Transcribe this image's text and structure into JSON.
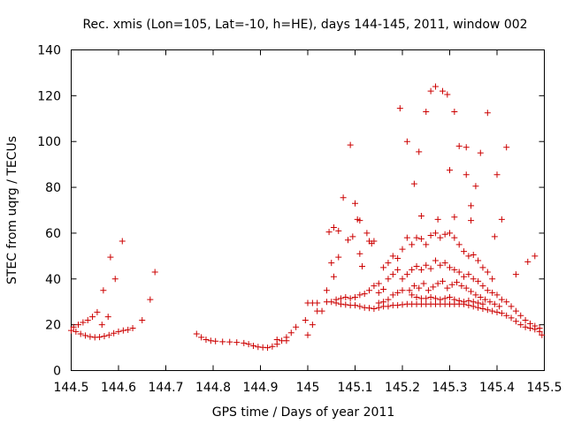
{
  "chart_data": {
    "type": "scatter",
    "title": "Rec. xmis (Lon=105, Lat=-10, h=HE), days 144-145, 2011, window 002",
    "xlabel": "GPS time / Days of year 2011",
    "ylabel": "STEC from uqrg / TECUs",
    "xlim": [
      144.5,
      145.5
    ],
    "ylim": [
      0,
      140
    ],
    "xticks": [
      144.5,
      144.6,
      144.7,
      144.8,
      144.9,
      145,
      145.1,
      145.2,
      145.3,
      145.4,
      145.5
    ],
    "xtick_labels": [
      "144.5",
      "144.6",
      "144.7",
      "144.8",
      "144.9",
      "145",
      "145.1",
      "145.2",
      "145.3",
      "145.4",
      "145.5"
    ],
    "yticks": [
      0,
      20,
      40,
      60,
      80,
      100,
      120,
      140
    ],
    "ytick_labels": [
      "0",
      "20",
      "40",
      "60",
      "80",
      "100",
      "120",
      "140"
    ],
    "grid": false,
    "legend": "none",
    "marker": "+",
    "marker_color": "#cc0000",
    "series": [
      {
        "name": "STEC",
        "points": [
          [
            144.5,
            17.5
          ],
          [
            144.51,
            17.0
          ],
          [
            144.52,
            16.0
          ],
          [
            144.53,
            15.3
          ],
          [
            144.54,
            14.8
          ],
          [
            144.55,
            14.5
          ],
          [
            144.56,
            14.6
          ],
          [
            144.57,
            15.0
          ],
          [
            144.58,
            15.5
          ],
          [
            144.59,
            16.3
          ],
          [
            144.6,
            17.0
          ],
          [
            144.61,
            17.5
          ],
          [
            144.62,
            17.8
          ],
          [
            144.63,
            18.5
          ],
          [
            144.65,
            22.0
          ],
          [
            144.505,
            19.0
          ],
          [
            144.515,
            20.0
          ],
          [
            144.525,
            21.0
          ],
          [
            144.535,
            22.0
          ],
          [
            144.545,
            23.5
          ],
          [
            144.555,
            25.5
          ],
          [
            144.565,
            20.0
          ],
          [
            144.568,
            35.0
          ],
          [
            144.578,
            23.5
          ],
          [
            144.583,
            49.5
          ],
          [
            144.593,
            40.0
          ],
          [
            144.608,
            56.5
          ],
          [
            144.667,
            31.0
          ],
          [
            144.677,
            43.0
          ],
          [
            144.765,
            16.0
          ],
          [
            144.775,
            14.5
          ],
          [
            144.785,
            13.5
          ],
          [
            144.795,
            13.0
          ],
          [
            144.805,
            12.8
          ],
          [
            144.82,
            12.6
          ],
          [
            144.835,
            12.5
          ],
          [
            144.85,
            12.3
          ],
          [
            144.865,
            12.0
          ],
          [
            144.875,
            11.5
          ],
          [
            144.885,
            10.8
          ],
          [
            144.895,
            10.3
          ],
          [
            144.905,
            10.1
          ],
          [
            144.915,
            10.0
          ],
          [
            144.925,
            10.5
          ],
          [
            144.935,
            11.5
          ],
          [
            144.945,
            13.0
          ],
          [
            144.955,
            14.5
          ],
          [
            144.965,
            16.5
          ],
          [
            144.975,
            19.0
          ],
          [
            144.935,
            13.5
          ],
          [
            144.955,
            13.0
          ],
          [
            144.995,
            22.0
          ],
          [
            145.0,
            15.5
          ],
          [
            145.01,
            20.0
          ],
          [
            145.02,
            26.0
          ],
          [
            145.03,
            26.0
          ],
          [
            145.0,
            29.5
          ],
          [
            145.01,
            29.5
          ],
          [
            145.02,
            29.5
          ],
          [
            145.04,
            30.0
          ],
          [
            145.04,
            35.0
          ],
          [
            145.045,
            60.5
          ],
          [
            145.055,
            62.5
          ],
          [
            145.05,
            47.0
          ],
          [
            145.055,
            41.0
          ],
          [
            145.065,
            49.5
          ],
          [
            145.065,
            61.0
          ],
          [
            145.075,
            75.5
          ],
          [
            145.085,
            57.0
          ],
          [
            145.09,
            98.5
          ],
          [
            145.095,
            58.5
          ],
          [
            145.1,
            73.0
          ],
          [
            145.105,
            66.0
          ],
          [
            145.11,
            65.5
          ],
          [
            145.11,
            51.0
          ],
          [
            145.115,
            45.5
          ],
          [
            145.125,
            60.0
          ],
          [
            145.13,
            56.5
          ],
          [
            145.135,
            55.5
          ],
          [
            145.14,
            56.5
          ],
          [
            145.05,
            30.0
          ],
          [
            145.06,
            29.5
          ],
          [
            145.07,
            29.0
          ],
          [
            145.08,
            28.8
          ],
          [
            145.09,
            28.5
          ],
          [
            145.1,
            28.5
          ],
          [
            145.11,
            28.0
          ],
          [
            145.12,
            27.5
          ],
          [
            145.13,
            27.3
          ],
          [
            145.14,
            27.0
          ],
          [
            145.15,
            27.5
          ],
          [
            145.16,
            28.0
          ],
          [
            145.17,
            28.0
          ],
          [
            145.18,
            28.5
          ],
          [
            145.19,
            28.5
          ],
          [
            145.2,
            28.8
          ],
          [
            145.21,
            29.0
          ],
          [
            145.22,
            29.0
          ],
          [
            145.23,
            29.0
          ],
          [
            145.24,
            29.0
          ],
          [
            145.25,
            29.0
          ],
          [
            145.26,
            29.0
          ],
          [
            145.27,
            29.0
          ],
          [
            145.28,
            29.0
          ],
          [
            145.29,
            29.0
          ],
          [
            145.3,
            29.0
          ],
          [
            145.31,
            29.0
          ],
          [
            145.32,
            29.0
          ],
          [
            145.33,
            29.0
          ],
          [
            145.34,
            28.5
          ],
          [
            145.35,
            28.0
          ],
          [
            145.36,
            27.5
          ],
          [
            145.37,
            27.0
          ],
          [
            145.38,
            26.5
          ],
          [
            145.39,
            26.0
          ],
          [
            145.4,
            25.5
          ],
          [
            145.41,
            25.0
          ],
          [
            145.42,
            24.0
          ],
          [
            145.43,
            23.0
          ],
          [
            145.44,
            21.5
          ],
          [
            145.45,
            20.0
          ],
          [
            145.46,
            19.0
          ],
          [
            145.47,
            18.5
          ],
          [
            145.48,
            18.0
          ],
          [
            145.49,
            17.0
          ],
          [
            145.495,
            15.5
          ],
          [
            145.06,
            31.0
          ],
          [
            145.07,
            31.5
          ],
          [
            145.08,
            32.0
          ],
          [
            145.09,
            31.5
          ],
          [
            145.1,
            32.0
          ],
          [
            145.11,
            33.0
          ],
          [
            145.12,
            33.5
          ],
          [
            145.13,
            35.0
          ],
          [
            145.14,
            37.0
          ],
          [
            145.15,
            34.0
          ],
          [
            145.16,
            35.5
          ],
          [
            145.17,
            40.0
          ],
          [
            145.18,
            42.0
          ],
          [
            145.19,
            44.0
          ],
          [
            145.2,
            40.0
          ],
          [
            145.21,
            42.0
          ],
          [
            145.22,
            44.0
          ],
          [
            145.23,
            45.5
          ],
          [
            145.24,
            44.0
          ],
          [
            145.25,
            46.0
          ],
          [
            145.26,
            44.5
          ],
          [
            145.27,
            48.0
          ],
          [
            145.28,
            46.0
          ],
          [
            145.29,
            47.0
          ],
          [
            145.3,
            45.0
          ],
          [
            145.31,
            44.0
          ],
          [
            145.32,
            43.0
          ],
          [
            145.33,
            41.0
          ],
          [
            145.34,
            42.0
          ],
          [
            145.35,
            40.0
          ],
          [
            145.36,
            39.0
          ],
          [
            145.37,
            37.0
          ],
          [
            145.38,
            35.0
          ],
          [
            145.39,
            34.0
          ],
          [
            145.4,
            33.0
          ],
          [
            145.41,
            31.0
          ],
          [
            145.42,
            30.0
          ],
          [
            145.43,
            28.0
          ],
          [
            145.44,
            26.0
          ],
          [
            145.45,
            24.0
          ],
          [
            145.46,
            22.0
          ],
          [
            145.47,
            20.5
          ],
          [
            145.48,
            19.5
          ],
          [
            145.49,
            18.5
          ],
          [
            145.15,
            38.0
          ],
          [
            145.16,
            45.0
          ],
          [
            145.17,
            47.0
          ],
          [
            145.18,
            50.0
          ],
          [
            145.19,
            49.0
          ],
          [
            145.2,
            53.0
          ],
          [
            145.21,
            58.0
          ],
          [
            145.22,
            55.0
          ],
          [
            145.23,
            58.0
          ],
          [
            145.24,
            57.5
          ],
          [
            145.25,
            55.0
          ],
          [
            145.26,
            59.0
          ],
          [
            145.27,
            60.0
          ],
          [
            145.28,
            58.0
          ],
          [
            145.29,
            59.5
          ],
          [
            145.3,
            60.0
          ],
          [
            145.31,
            58.0
          ],
          [
            145.32,
            55.0
          ],
          [
            145.33,
            52.0
          ],
          [
            145.34,
            50.0
          ],
          [
            145.35,
            50.5
          ],
          [
            145.36,
            48.0
          ],
          [
            145.37,
            45.0
          ],
          [
            145.38,
            43.0
          ],
          [
            145.39,
            40.0
          ],
          [
            145.195,
            114.5
          ],
          [
            145.21,
            100.0
          ],
          [
            145.225,
            81.5
          ],
          [
            145.235,
            95.5
          ],
          [
            145.24,
            67.5
          ],
          [
            145.25,
            113.0
          ],
          [
            145.26,
            122.0
          ],
          [
            145.27,
            124.0
          ],
          [
            145.275,
            66.0
          ],
          [
            145.285,
            122.0
          ],
          [
            145.295,
            120.5
          ],
          [
            145.3,
            87.5
          ],
          [
            145.31,
            113.0
          ],
          [
            145.31,
            67.0
          ],
          [
            145.32,
            98.0
          ],
          [
            145.335,
            97.5
          ],
          [
            145.335,
            85.5
          ],
          [
            145.345,
            72.0
          ],
          [
            145.345,
            65.5
          ],
          [
            145.355,
            80.5
          ],
          [
            145.365,
            95.0
          ],
          [
            145.38,
            112.5
          ],
          [
            145.395,
            58.5
          ],
          [
            145.4,
            85.5
          ],
          [
            145.41,
            66.0
          ],
          [
            145.42,
            97.5
          ],
          [
            145.44,
            42.0
          ],
          [
            145.465,
            47.5
          ],
          [
            145.48,
            50.0
          ],
          [
            145.215,
            35.0
          ],
          [
            145.225,
            37.0
          ],
          [
            145.235,
            36.0
          ],
          [
            145.245,
            38.0
          ],
          [
            145.255,
            35.0
          ],
          [
            145.265,
            36.5
          ],
          [
            145.275,
            38.0
          ],
          [
            145.285,
            39.0
          ],
          [
            145.295,
            36.0
          ],
          [
            145.305,
            37.5
          ],
          [
            145.315,
            38.5
          ],
          [
            145.325,
            37.0
          ],
          [
            145.335,
            36.0
          ],
          [
            145.345,
            34.5
          ],
          [
            145.355,
            33.0
          ],
          [
            145.365,
            32.0
          ],
          [
            145.375,
            31.0
          ],
          [
            145.385,
            30.0
          ],
          [
            145.395,
            29.0
          ],
          [
            145.405,
            28.0
          ],
          [
            145.22,
            33.0
          ],
          [
            145.23,
            32.0
          ],
          [
            145.24,
            31.5
          ],
          [
            145.25,
            31.5
          ],
          [
            145.26,
            32.0
          ],
          [
            145.27,
            31.5
          ],
          [
            145.28,
            31.0
          ],
          [
            145.29,
            31.5
          ],
          [
            145.3,
            32.0
          ],
          [
            145.31,
            31.0
          ],
          [
            145.32,
            30.5
          ],
          [
            145.33,
            30.0
          ],
          [
            145.34,
            30.5
          ],
          [
            145.35,
            30.0
          ],
          [
            145.36,
            29.5
          ],
          [
            145.37,
            29.0
          ],
          [
            145.18,
            33.0
          ],
          [
            145.19,
            34.0
          ],
          [
            145.2,
            35.0
          ],
          [
            145.17,
            31.0
          ],
          [
            145.16,
            30.0
          ],
          [
            145.15,
            29.5
          ]
        ]
      }
    ]
  }
}
